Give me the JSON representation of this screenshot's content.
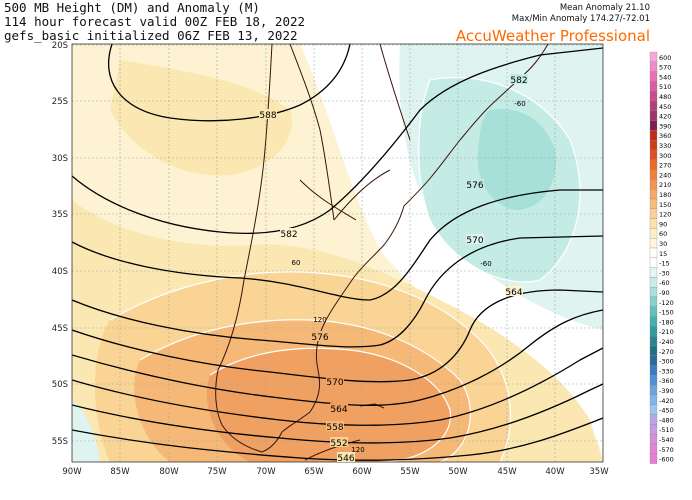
{
  "header": {
    "line1": "500 MB Height (DM) and Anomaly (M)",
    "line2": "114 hour forecast valid 00Z FEB 18, 2022",
    "line3": "gefs_basic initialized 06Z FEB 13, 2022",
    "mean_anomaly": "Mean Anomaly 21.10",
    "maxmin_anomaly": "Max/Min Anomaly 174.27/-72.01",
    "brand": "AccuWeather Professional",
    "brand_color": "#ff6a00"
  },
  "axes": {
    "lat_labels": [
      "20S",
      "25S",
      "30S",
      "35S",
      "40S",
      "45S",
      "50S",
      "55S"
    ],
    "lon_labels": [
      "90W",
      "85W",
      "80W",
      "75W",
      "70W",
      "65W",
      "60W",
      "55W",
      "50W",
      "45W",
      "40W",
      "35W"
    ]
  },
  "contours": {
    "height_labels": [
      "588",
      "582",
      "576",
      "570",
      "564",
      "558",
      "552",
      "546",
      "582",
      "576",
      "570",
      "564"
    ],
    "anomaly_labels": [
      "60",
      "120",
      "120",
      "-60",
      "-60"
    ]
  },
  "colorbar": {
    "labels": [
      "600",
      "570",
      "540",
      "510",
      "480",
      "450",
      "420",
      "390",
      "360",
      "330",
      "300",
      "270",
      "240",
      "210",
      "180",
      "150",
      "120",
      "90",
      "60",
      "30",
      "15",
      "-15",
      "-30",
      "-60",
      "-90",
      "-120",
      "-150",
      "-180",
      "-210",
      "-240",
      "-270",
      "-300",
      "-330",
      "-360",
      "-390",
      "-420",
      "-450",
      "-480",
      "-510",
      "-540",
      "-570",
      "-600"
    ],
    "colors": [
      "#f7a8d8",
      "#f08cc6",
      "#e873b4",
      "#d95fa2",
      "#c94c8e",
      "#b23f7c",
      "#9c356c",
      "#7c1f55",
      "#c02a1a",
      "#d23a1c",
      "#e04f20",
      "#eb6a2a",
      "#f0803a",
      "#f39450",
      "#f6aa66",
      "#f8bd7e",
      "#fad098",
      "#fbe1b0",
      "#fdeec6",
      "#fef7dc",
      "#ffffff",
      "#ffffff",
      "#e3f6f4",
      "#c8ede8",
      "#a8e0da",
      "#86d2cb",
      "#63c2bc",
      "#45b0ad",
      "#33999b",
      "#2a8590",
      "#267085",
      "#2a6aa0",
      "#3a7cc0",
      "#5190d6",
      "#6aa3e0",
      "#83b6e8",
      "#9dc6ee",
      "#b6a8e6",
      "#c79ce0",
      "#d68fda",
      "#e184d6",
      "#ea7cd4"
    ]
  }
}
